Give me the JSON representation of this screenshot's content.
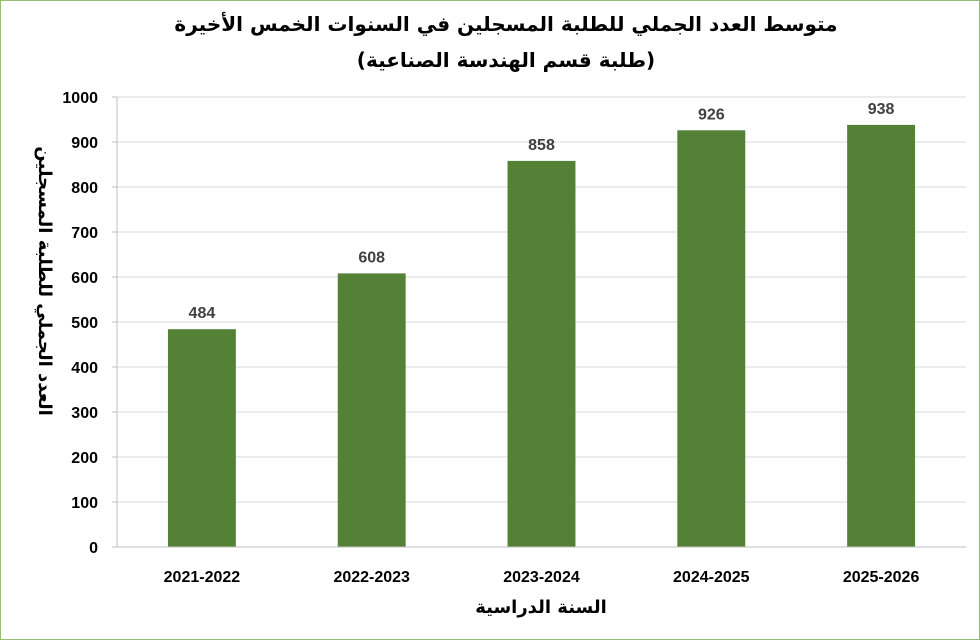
{
  "chart_data": {
    "type": "bar",
    "title": "متوسط العدد الجملي للطلبة المسجلين في السنوات الخمس الأخيرة",
    "subtitle": "(طلبة قسم الهندسة الصناعية)",
    "xlabel": "السنة الدراسية",
    "ylabel": "العدد الجملي للطلبة المسجلين",
    "categories": [
      "2021-2022",
      "2022-2023",
      "2023-2024",
      "2024-2025",
      "2025-2026"
    ],
    "values": [
      484,
      608,
      858,
      926,
      938
    ],
    "ylim": [
      0,
      1000
    ],
    "yticks": [
      0,
      100,
      200,
      300,
      400,
      500,
      600,
      700,
      800,
      900,
      1000
    ],
    "grid": true,
    "legend": "none",
    "bar_color": "#538135",
    "data_labels": true
  }
}
